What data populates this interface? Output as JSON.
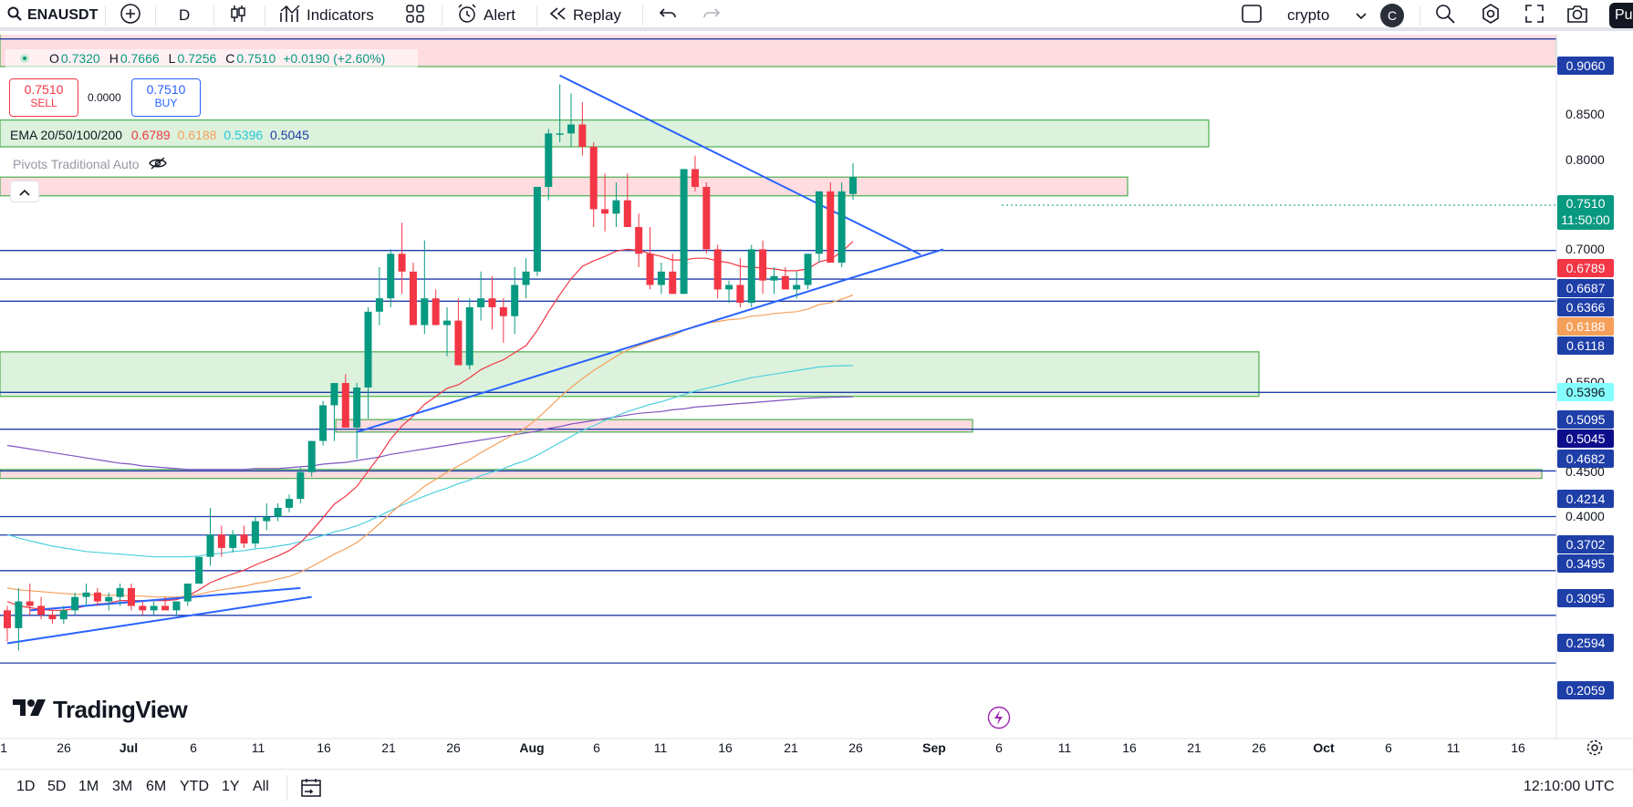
{
  "toolbar": {
    "symbol": "ENAUSDT",
    "interval": "D",
    "indicators_label": "Indicators",
    "alert_label": "Alert",
    "replay_label": "Replay",
    "layout_name": "crypto",
    "layout_badge": "C",
    "publish_label": "Pu"
  },
  "legend": {
    "o_label": "O",
    "o_value": "0.7320",
    "h_label": "H",
    "h_value": "0.7666",
    "l_label": "L",
    "l_value": "0.7256",
    "c_label": "C",
    "c_value": "0.7510",
    "change": "+0.0190 (+2.60%)",
    "sell_price": "0.7510",
    "sell_label": "SELL",
    "spread": "0.0000",
    "buy_price": "0.7510",
    "buy_label": "BUY",
    "ema_label": "EMA 20/50/100/200",
    "ema20": "0.6789",
    "ema50": "0.6188",
    "ema100": "0.5396",
    "ema200": "0.5045",
    "pivots_label": "Pivots Traditional Auto"
  },
  "colors": {
    "up": "#089981",
    "down": "#f23645",
    "trendline": "#2962ff",
    "level": "#1e3ea8",
    "ema20": "#f23645",
    "ema50": "#f5a05a",
    "ema100": "#4dd0e1",
    "ema200": "#7e57c2",
    "supply_fill": "#ffd6da",
    "demand_fill": "#d6f0d6"
  },
  "price_scale": {
    "ticks": [
      "0.8500",
      "0.8000",
      "0.7000",
      "0.5500",
      "0.4500",
      "0.4000"
    ],
    "current_price": "0.7510",
    "countdown": "11:50:00",
    "level_tags": [
      "0.9060",
      "0.6687",
      "0.6366",
      "0.6118",
      "0.5095",
      "0.4682",
      "0.4214",
      "0.3702",
      "0.3495",
      "0.3095",
      "0.2594",
      "0.2059"
    ],
    "ema_tags": {
      "ema20": "0.6789",
      "ema50": "0.6188",
      "ema100": "0.5396",
      "ema200": "0.5045"
    }
  },
  "time_scale": {
    "ticks": [
      "1",
      "26",
      "Jul",
      "6",
      "11",
      "16",
      "21",
      "26",
      "Aug",
      "6",
      "11",
      "16",
      "21",
      "26",
      "Sep",
      "6",
      "11",
      "16",
      "21",
      "26",
      "Oct",
      "6",
      "11",
      "16"
    ]
  },
  "bottom": {
    "ranges": [
      "1D",
      "5D",
      "1M",
      "3M",
      "6M",
      "YTD",
      "1Y",
      "All"
    ],
    "clock": "12:10:00 UTC"
  },
  "brand": "TradingView",
  "chart_data": {
    "type": "candlestick",
    "symbol": "ENAUSDT",
    "interval": "D",
    "candles": [
      [
        0.265,
        0.27,
        0.23,
        0.245
      ],
      [
        0.245,
        0.29,
        0.22,
        0.275
      ],
      [
        0.275,
        0.295,
        0.26,
        0.27
      ],
      [
        0.27,
        0.28,
        0.255,
        0.26
      ],
      [
        0.26,
        0.265,
        0.25,
        0.255
      ],
      [
        0.255,
        0.27,
        0.25,
        0.265
      ],
      [
        0.265,
        0.285,
        0.26,
        0.28
      ],
      [
        0.28,
        0.295,
        0.27,
        0.285
      ],
      [
        0.285,
        0.29,
        0.27,
        0.275
      ],
      [
        0.275,
        0.285,
        0.265,
        0.28
      ],
      [
        0.28,
        0.295,
        0.27,
        0.29
      ],
      [
        0.29,
        0.295,
        0.265,
        0.27
      ],
      [
        0.27,
        0.275,
        0.26,
        0.265
      ],
      [
        0.265,
        0.275,
        0.26,
        0.27
      ],
      [
        0.27,
        0.28,
        0.265,
        0.265
      ],
      [
        0.265,
        0.275,
        0.26,
        0.275
      ],
      [
        0.275,
        0.295,
        0.27,
        0.295
      ],
      [
        0.295,
        0.325,
        0.295,
        0.325
      ],
      [
        0.325,
        0.38,
        0.315,
        0.35
      ],
      [
        0.35,
        0.36,
        0.325,
        0.335
      ],
      [
        0.335,
        0.355,
        0.33,
        0.35
      ],
      [
        0.35,
        0.36,
        0.335,
        0.34
      ],
      [
        0.34,
        0.37,
        0.335,
        0.365
      ],
      [
        0.365,
        0.385,
        0.355,
        0.37
      ],
      [
        0.37,
        0.385,
        0.365,
        0.38
      ],
      [
        0.38,
        0.395,
        0.375,
        0.39
      ],
      [
        0.39,
        0.425,
        0.385,
        0.42
      ],
      [
        0.42,
        0.455,
        0.415,
        0.455
      ],
      [
        0.455,
        0.5,
        0.45,
        0.495
      ],
      [
        0.495,
        0.52,
        0.455,
        0.52
      ],
      [
        0.52,
        0.53,
        0.47,
        0.47
      ],
      [
        0.47,
        0.52,
        0.435,
        0.515
      ],
      [
        0.515,
        0.605,
        0.48,
        0.6
      ],
      [
        0.6,
        0.65,
        0.585,
        0.615
      ],
      [
        0.615,
        0.67,
        0.605,
        0.665
      ],
      [
        0.665,
        0.7,
        0.62,
        0.645
      ],
      [
        0.645,
        0.655,
        0.585,
        0.585
      ],
      [
        0.585,
        0.68,
        0.575,
        0.615
      ],
      [
        0.615,
        0.625,
        0.585,
        0.585
      ],
      [
        0.585,
        0.605,
        0.55,
        0.59
      ],
      [
        0.59,
        0.615,
        0.54,
        0.54
      ],
      [
        0.54,
        0.615,
        0.535,
        0.605
      ],
      [
        0.605,
        0.645,
        0.59,
        0.615
      ],
      [
        0.615,
        0.64,
        0.58,
        0.605
      ],
      [
        0.605,
        0.615,
        0.565,
        0.595
      ],
      [
        0.595,
        0.65,
        0.575,
        0.63
      ],
      [
        0.63,
        0.66,
        0.615,
        0.645
      ],
      [
        0.645,
        0.74,
        0.64,
        0.74
      ],
      [
        0.74,
        0.805,
        0.725,
        0.8
      ],
      [
        0.8,
        0.855,
        0.79,
        0.8
      ],
      [
        0.8,
        0.845,
        0.785,
        0.81
      ],
      [
        0.81,
        0.835,
        0.775,
        0.785
      ],
      [
        0.785,
        0.79,
        0.695,
        0.715
      ],
      [
        0.715,
        0.755,
        0.69,
        0.71
      ],
      [
        0.71,
        0.745,
        0.695,
        0.725
      ],
      [
        0.725,
        0.755,
        0.695,
        0.695
      ],
      [
        0.695,
        0.71,
        0.65,
        0.665
      ],
      [
        0.665,
        0.695,
        0.625,
        0.63
      ],
      [
        0.63,
        0.655,
        0.62,
        0.645
      ],
      [
        0.645,
        0.665,
        0.62,
        0.62
      ],
      [
        0.62,
        0.76,
        0.62,
        0.76
      ],
      [
        0.76,
        0.775,
        0.735,
        0.74
      ],
      [
        0.74,
        0.745,
        0.665,
        0.67
      ],
      [
        0.67,
        0.675,
        0.615,
        0.625
      ],
      [
        0.625,
        0.635,
        0.61,
        0.63
      ],
      [
        0.63,
        0.66,
        0.605,
        0.61
      ],
      [
        0.61,
        0.675,
        0.605,
        0.67
      ],
      [
        0.67,
        0.68,
        0.62,
        0.635
      ],
      [
        0.635,
        0.65,
        0.62,
        0.64
      ],
      [
        0.64,
        0.65,
        0.625,
        0.625
      ],
      [
        0.625,
        0.645,
        0.615,
        0.63
      ],
      [
        0.63,
        0.665,
        0.625,
        0.665
      ],
      [
        0.665,
        0.735,
        0.655,
        0.735
      ],
      [
        0.735,
        0.745,
        0.655,
        0.655
      ],
      [
        0.655,
        0.745,
        0.65,
        0.735
      ],
      [
        0.732,
        0.7666,
        0.7256,
        0.751
      ]
    ],
    "ema20": [
      0.275,
      0.27,
      0.268,
      0.266,
      0.265,
      0.265,
      0.267,
      0.27,
      0.272,
      0.273,
      0.276,
      0.276,
      0.276,
      0.276,
      0.276,
      0.277,
      0.281,
      0.288,
      0.296,
      0.301,
      0.306,
      0.31,
      0.316,
      0.321,
      0.326,
      0.332,
      0.341,
      0.354,
      0.369,
      0.384,
      0.393,
      0.404,
      0.421,
      0.438,
      0.457,
      0.472,
      0.483,
      0.496,
      0.505,
      0.514,
      0.518,
      0.526,
      0.535,
      0.541,
      0.546,
      0.554,
      0.562,
      0.579,
      0.6,
      0.619,
      0.637,
      0.651,
      0.657,
      0.662,
      0.668,
      0.67,
      0.669,
      0.665,
      0.662,
      0.658,
      0.658,
      0.66,
      0.66,
      0.657,
      0.655,
      0.651,
      0.65,
      0.649,
      0.648,
      0.646,
      0.646,
      0.648,
      0.656,
      0.659,
      0.667,
      0.6789
    ],
    "ema50": [
      0.29,
      0.288,
      0.287,
      0.286,
      0.285,
      0.284,
      0.283,
      0.283,
      0.282,
      0.282,
      0.282,
      0.281,
      0.281,
      0.28,
      0.28,
      0.28,
      0.281,
      0.283,
      0.286,
      0.288,
      0.29,
      0.292,
      0.295,
      0.297,
      0.3,
      0.303,
      0.308,
      0.314,
      0.321,
      0.328,
      0.334,
      0.341,
      0.351,
      0.362,
      0.374,
      0.385,
      0.394,
      0.404,
      0.412,
      0.42,
      0.427,
      0.434,
      0.442,
      0.449,
      0.456,
      0.463,
      0.47,
      0.48,
      0.492,
      0.504,
      0.515,
      0.525,
      0.534,
      0.542,
      0.55,
      0.557,
      0.562,
      0.566,
      0.57,
      0.573,
      0.579,
      0.584,
      0.587,
      0.589,
      0.591,
      0.592,
      0.595,
      0.596,
      0.598,
      0.599,
      0.6,
      0.603,
      0.608,
      0.61,
      0.614,
      0.6188
    ],
    "ema100": [
      0.35,
      0.346,
      0.343,
      0.34,
      0.337,
      0.335,
      0.333,
      0.331,
      0.33,
      0.329,
      0.328,
      0.327,
      0.326,
      0.325,
      0.325,
      0.325,
      0.325,
      0.326,
      0.328,
      0.329,
      0.331,
      0.332,
      0.334,
      0.335,
      0.337,
      0.339,
      0.342,
      0.345,
      0.349,
      0.353,
      0.356,
      0.36,
      0.365,
      0.371,
      0.377,
      0.383,
      0.388,
      0.393,
      0.398,
      0.402,
      0.407,
      0.411,
      0.416,
      0.42,
      0.424,
      0.429,
      0.433,
      0.439,
      0.446,
      0.453,
      0.46,
      0.467,
      0.472,
      0.478,
      0.483,
      0.488,
      0.492,
      0.496,
      0.499,
      0.503,
      0.507,
      0.511,
      0.514,
      0.517,
      0.52,
      0.523,
      0.526,
      0.528,
      0.53,
      0.532,
      0.534,
      0.536,
      0.538,
      0.539,
      0.5394,
      0.5396
    ],
    "ema200": [
      0.45,
      0.448,
      0.446,
      0.444,
      0.442,
      0.44,
      0.438,
      0.436,
      0.434,
      0.432,
      0.43,
      0.429,
      0.427,
      0.426,
      0.425,
      0.424,
      0.423,
      0.423,
      0.423,
      0.423,
      0.423,
      0.423,
      0.424,
      0.424,
      0.424,
      0.425,
      0.426,
      0.427,
      0.429,
      0.43,
      0.431,
      0.433,
      0.435,
      0.437,
      0.44,
      0.442,
      0.444,
      0.446,
      0.448,
      0.45,
      0.452,
      0.454,
      0.456,
      0.458,
      0.46,
      0.462,
      0.464,
      0.466,
      0.469,
      0.471,
      0.474,
      0.476,
      0.478,
      0.48,
      0.482,
      0.484,
      0.486,
      0.487,
      0.488,
      0.49,
      0.491,
      0.493,
      0.494,
      0.495,
      0.496,
      0.497,
      0.498,
      0.499,
      0.5,
      0.501,
      0.502,
      0.503,
      0.5035,
      0.504,
      0.5043,
      0.5045
    ],
    "horizontal_levels": [
      0.906,
      0.6687,
      0.6366,
      0.6118,
      0.5095,
      0.4682,
      0.4214,
      0.3702,
      0.3495,
      0.3095,
      0.2594,
      0.2059
    ],
    "zones": [
      {
        "kind": "supply",
        "from": 0.875,
        "to": 0.92
      },
      {
        "kind": "demand",
        "from": 0.785,
        "to": 0.815
      },
      {
        "kind": "supply",
        "from": 0.73,
        "to": 0.751
      },
      {
        "kind": "demand",
        "from": 0.505,
        "to": 0.555
      },
      {
        "kind": "supply",
        "from": 0.465,
        "to": 0.479
      },
      {
        "kind": "supply",
        "from": 0.413,
        "to": 0.423
      }
    ],
    "trendlines": [
      {
        "from": [
          49,
          0.865
        ],
        "to": [
          81,
          0.664
        ]
      },
      {
        "from": [
          31,
          0.465
        ],
        "to": [
          83,
          0.67
        ]
      },
      {
        "from": [
          0,
          0.228
        ],
        "to": [
          27,
          0.28
        ]
      },
      {
        "from": [
          2,
          0.265
        ],
        "to": [
          26,
          0.29
        ]
      }
    ]
  }
}
